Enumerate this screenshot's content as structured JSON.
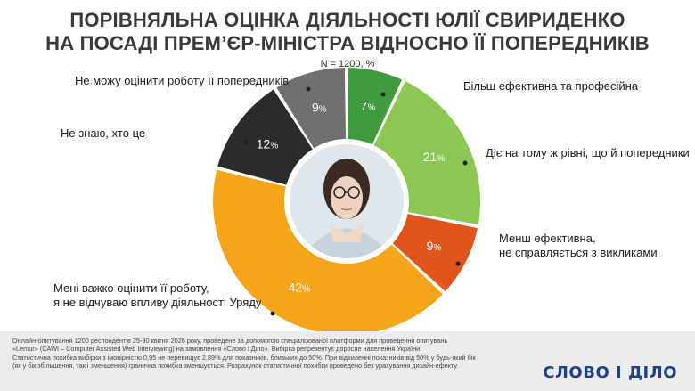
{
  "title_line1": "ПОРІВНЯЛЬНА ОЦІНКА ДІЯЛЬНОСТІ ЮЛІЇ СВИРИДЕНКО",
  "title_line2": "НА ПОСАДІ ПРЕМ’ЄР-МІНІСТРА ВІДНОСНО ЇЇ ПОПЕРЕДНИКІВ",
  "subtitle": "N = 1200, %",
  "chart_data": {
    "type": "pie",
    "donut": true,
    "start": "top",
    "direction": "clockwise",
    "slices": [
      {
        "label": "Більш ефективна та професійна",
        "value": 7,
        "color": "#3e9b3e"
      },
      {
        "label": "Діє на тому ж рівні, що й попередники",
        "value": 21,
        "color": "#8dc753"
      },
      {
        "label": "Менш ефективна,|не справляється з викликами",
        "value": 9,
        "color": "#e0541e"
      },
      {
        "label": "Мені важко оцінити її роботу,|я не відчуваю впливу діяльності Уряду",
        "value": 42,
        "color": "#f5a41c"
      },
      {
        "label": "Не знаю, хто це",
        "value": 12,
        "color": "#2b2b2b"
      },
      {
        "label": "Не можу оцінити роботу її попередників",
        "value": 9,
        "color": "#707070"
      }
    ],
    "value_suffix": "%"
  },
  "footnote": [
    "Онлайн-опитування 1200 респондентів 25-30 квітня 2026 року, проведене за допомогою спеціалізованої платформи для проведення опитувань",
    "«Lemur» (CAWI – Computer Assisted Web Interviewing) на замовлення «Слово і Діло». Вибірка репрезентує доросле населення України.",
    "Статистична похибка вибірки з імовірністю 0,95 не перевищує 2,89% для показників, близьких до 50%. При відхиленні показників від 50% у будь-який бік",
    "(як у бік збільшення, так і зменшення) гранична похибка зменшується. Розрахунок статистичної похибки проведено без урахування дизайн-ефекту."
  ],
  "logo": {
    "part1": "СЛОВО",
    "sep": "І",
    "part2": "ДІЛО"
  }
}
